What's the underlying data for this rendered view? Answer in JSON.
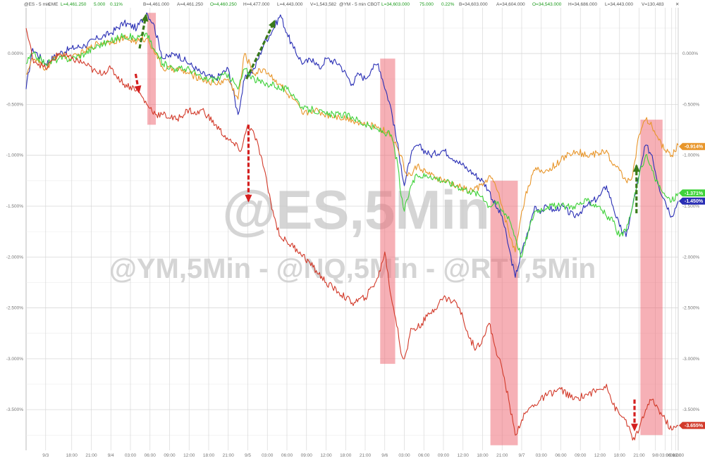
{
  "header": {
    "es_symbol": "@ES - 5 min",
    "es_exchange": "CME",
    "es_last": "L=4,461.250",
    "es_change": "5.000",
    "es_pct": "0.11%",
    "es_bid": "B=4,461.000",
    "es_ask": "A=4,461.250",
    "es_open": "O=4,460.250",
    "es_high": "H=4,477.000",
    "es_low": "L=4,443.000",
    "es_vol": "V=1,543,582",
    "ym_symbol": "@YM - 5 min",
    "ym_exchange": "CBOT",
    "ym_last": "L=34,603.000",
    "ym_change": "75.000",
    "ym_pct": "0.22%",
    "ym_bid": "B=34,603.000",
    "ym_ask": "A=34,604.000",
    "ym_open": "O=34,543.000",
    "ym_high": "H=34,686.000",
    "ym_low": "L=34,443.000",
    "ym_vol": "V=130,483"
  },
  "watermark": {
    "main": "@ES,5Min",
    "sub": "@YM,5Min - @NQ,5Min - @RTY,5Min"
  },
  "colors": {
    "es": "#e8962b",
    "ym": "#d23a2a",
    "nq": "#2a2fb5",
    "rty": "#3fd23a",
    "highlight": "#ee6f7a",
    "arrow_green": "#3a7a1a",
    "arrow_red": "#d42020",
    "grid": "#d8d8d8"
  },
  "chart_data": {
    "type": "line",
    "y_ticks_left": [
      "0.000%",
      "-0.500%",
      "-1.000%",
      "-1.500%",
      "-2.000%",
      "-2.500%",
      "-3.000%",
      "-3.500%"
    ],
    "y_ticks_right": [
      "0.000%",
      "-0.500%",
      "-1.000%",
      "-1.500%",
      "-2.000%",
      "-2.500%",
      "-3.000%",
      "-3.500%"
    ],
    "ylim": [
      -3.9,
      0.45
    ],
    "xlim": [
      0,
      100
    ],
    "x_ticks": [
      {
        "x": 3,
        "label": "9/3"
      },
      {
        "x": 7,
        "label": "18:00"
      },
      {
        "x": 10,
        "label": "21:00"
      },
      {
        "x": 13,
        "label": "9/4"
      },
      {
        "x": 16,
        "label": "03:00"
      },
      {
        "x": 19,
        "label": "06:00"
      },
      {
        "x": 22,
        "label": "09:00"
      },
      {
        "x": 25,
        "label": "12:00"
      },
      {
        "x": 28,
        "label": "18:00"
      },
      {
        "x": 31,
        "label": "21:00"
      },
      {
        "x": 34,
        "label": "9/5"
      },
      {
        "x": 37,
        "label": "03:00"
      },
      {
        "x": 40,
        "label": "06:00"
      },
      {
        "x": 43,
        "label": "09:00"
      },
      {
        "x": 46,
        "label": "12:00"
      },
      {
        "x": 49,
        "label": "18:00"
      },
      {
        "x": 52,
        "label": "21:00"
      },
      {
        "x": 55,
        "label": "9/6"
      },
      {
        "x": 58,
        "label": "03:00"
      },
      {
        "x": 61,
        "label": "06:00"
      },
      {
        "x": 64,
        "label": "09:00"
      },
      {
        "x": 67,
        "label": "12:00"
      },
      {
        "x": 70,
        "label": "18:00"
      },
      {
        "x": 73,
        "label": "21:00"
      },
      {
        "x": 76,
        "label": "9/7"
      },
      {
        "x": 79,
        "label": "03:00"
      },
      {
        "x": 82,
        "label": "06:00"
      },
      {
        "x": 85,
        "label": "09:00"
      },
      {
        "x": 88,
        "label": "12:00"
      },
      {
        "x": 91,
        "label": "18:00"
      },
      {
        "x": 94,
        "label": "21:00"
      },
      {
        "x": 96.5,
        "label": "9/8"
      },
      {
        "x": 98,
        "label": "03:00"
      },
      {
        "x": 99,
        "label": "06:00"
      },
      {
        "x": 99.6,
        "label": "09:00"
      },
      {
        "x": 100,
        "label": "12:00"
      }
    ],
    "series": [
      {
        "key": "nq",
        "x": [
          0,
          1,
          3,
          5,
          7,
          9,
          11,
          13,
          15,
          17,
          18.5,
          19.5,
          21,
          23,
          25,
          27,
          29,
          31,
          32.5,
          33.5,
          35,
          36.5,
          38,
          39,
          40,
          41,
          42.5,
          44,
          45,
          46,
          48,
          50,
          51,
          52,
          53,
          54,
          56,
          57.5,
          58,
          59,
          60,
          62,
          64,
          66,
          68,
          70,
          71,
          72,
          73,
          74,
          75,
          76,
          77,
          78,
          79,
          80,
          81,
          82,
          84,
          86,
          88,
          89,
          90,
          91,
          92,
          93,
          94,
          95,
          96,
          97,
          98,
          99,
          100
        ],
        "y": [
          -0.35,
          0.05,
          -0.1,
          0.0,
          0.05,
          0.08,
          0.15,
          0.2,
          0.3,
          0.25,
          0.4,
          0.3,
          -0.05,
          0.0,
          -0.1,
          -0.2,
          -0.25,
          -0.15,
          -0.6,
          -0.25,
          -0.15,
          0.1,
          0.25,
          0.38,
          0.2,
          0.05,
          -0.1,
          -0.05,
          -0.15,
          -0.05,
          -0.1,
          -0.3,
          -0.2,
          -0.25,
          -0.15,
          -0.1,
          -0.55,
          -1.1,
          -1.3,
          -1.0,
          -0.9,
          -1.0,
          -0.95,
          -1.05,
          -1.15,
          -1.25,
          -1.35,
          -1.5,
          -1.6,
          -1.9,
          -2.2,
          -1.95,
          -1.75,
          -1.5,
          -1.55,
          -1.5,
          -1.55,
          -1.5,
          -1.6,
          -1.5,
          -1.4,
          -1.3,
          -1.5,
          -1.7,
          -1.8,
          -1.5,
          -1.2,
          -0.9,
          -1.0,
          -1.3,
          -1.45,
          -1.6,
          -1.45
        ]
      },
      {
        "key": "es",
        "x": [
          0,
          1,
          3,
          5,
          7,
          9,
          11,
          13,
          15,
          17,
          18.5,
          19.5,
          21,
          23,
          25,
          27,
          29,
          31,
          32.5,
          33.5,
          35,
          36.5,
          38,
          39,
          40,
          41,
          42.5,
          44,
          46,
          48,
          50,
          52,
          54,
          56,
          57.5,
          58,
          59,
          60,
          62,
          64,
          66,
          68,
          70,
          71,
          72,
          73,
          74,
          75,
          76,
          77,
          78,
          80,
          82,
          84,
          86,
          88,
          89,
          90,
          91,
          92,
          93,
          94,
          95,
          96,
          97,
          98,
          99,
          100
        ],
        "y": [
          -0.2,
          -0.05,
          -0.15,
          0.0,
          -0.05,
          0.02,
          0.1,
          0.12,
          0.15,
          0.12,
          0.15,
          0.05,
          -0.15,
          -0.15,
          -0.2,
          -0.25,
          -0.3,
          -0.25,
          -0.45,
          0.0,
          -0.2,
          -0.15,
          -0.25,
          -0.3,
          -0.4,
          -0.45,
          -0.6,
          -0.55,
          -0.6,
          -0.62,
          -0.65,
          -0.7,
          -0.72,
          -0.8,
          -1.0,
          -1.15,
          -1.2,
          -1.1,
          -1.2,
          -1.25,
          -1.3,
          -1.35,
          -1.3,
          -1.2,
          -1.3,
          -1.5,
          -1.75,
          -1.95,
          -1.55,
          -1.3,
          -1.15,
          -1.15,
          -1.05,
          -0.95,
          -1.0,
          -0.98,
          -0.95,
          -1.1,
          -1.15,
          -1.25,
          -1.2,
          -0.8,
          -0.65,
          -0.72,
          -0.85,
          -0.95,
          -1.0,
          -0.9
        ]
      },
      {
        "key": "rty",
        "x": [
          0,
          1,
          3,
          5,
          7,
          9,
          11,
          13,
          15,
          17,
          18.5,
          19.5,
          21,
          23,
          25,
          27,
          29,
          31,
          32.5,
          33.5,
          35,
          36.5,
          38,
          39,
          40,
          41,
          42.5,
          44,
          46,
          48,
          50,
          52,
          54,
          56,
          57,
          57.5,
          58,
          59,
          60,
          62,
          64,
          66,
          68,
          70,
          71,
          72,
          73,
          74,
          75,
          76,
          77,
          78,
          80,
          82,
          84,
          86,
          88,
          89,
          90,
          91,
          92,
          93,
          94,
          95,
          96,
          97,
          98,
          99,
          100
        ],
        "y": [
          -0.1,
          0.0,
          -0.1,
          -0.05,
          -0.05,
          0.0,
          0.08,
          0.12,
          0.18,
          0.15,
          0.2,
          0.05,
          -0.1,
          -0.15,
          -0.15,
          -0.25,
          -0.25,
          -0.2,
          -0.35,
          -0.15,
          -0.25,
          -0.3,
          -0.3,
          -0.35,
          -0.35,
          -0.4,
          -0.55,
          -0.55,
          -0.6,
          -0.6,
          -0.62,
          -0.7,
          -0.75,
          -0.8,
          -1.1,
          -1.4,
          -1.55,
          -1.3,
          -1.2,
          -1.2,
          -1.25,
          -1.3,
          -1.35,
          -1.4,
          -1.5,
          -1.45,
          -1.55,
          -1.6,
          -1.8,
          -2.0,
          -1.75,
          -1.55,
          -1.5,
          -1.5,
          -1.5,
          -1.45,
          -1.5,
          -1.6,
          -1.65,
          -1.8,
          -1.75,
          -1.5,
          -1.2,
          -1.0,
          -1.15,
          -1.3,
          -1.4,
          -1.45,
          -1.37
        ]
      },
      {
        "key": "ym",
        "x": [
          0,
          1,
          3,
          5,
          7,
          9,
          11,
          13,
          15,
          17,
          18.5,
          20,
          21,
          23,
          25,
          26,
          27,
          29,
          31,
          33,
          34,
          35,
          36,
          37,
          38,
          39,
          40,
          42,
          44,
          46,
          48,
          50,
          52,
          54,
          55,
          56,
          57,
          57.5,
          58,
          58.5,
          59,
          60,
          62,
          64,
          65,
          66,
          67,
          68,
          69,
          70,
          71,
          72,
          73,
          74,
          75,
          76,
          77,
          78,
          80,
          82,
          84,
          86,
          88,
          89,
          90,
          91,
          92,
          93,
          94,
          95,
          96,
          97,
          98,
          99,
          100
        ],
        "y": [
          0.25,
          -0.05,
          -0.15,
          0.0,
          -0.05,
          -0.1,
          -0.2,
          -0.15,
          -0.3,
          -0.35,
          -0.5,
          -0.6,
          -0.6,
          -0.65,
          -0.55,
          -0.6,
          -0.55,
          -0.7,
          -0.85,
          -0.95,
          -0.7,
          -0.8,
          -1.0,
          -1.3,
          -1.6,
          -1.8,
          -1.85,
          -1.95,
          -2.1,
          -2.25,
          -2.35,
          -2.45,
          -2.4,
          -2.2,
          -1.95,
          -2.4,
          -2.7,
          -2.95,
          -3.0,
          -2.9,
          -2.7,
          -2.7,
          -2.55,
          -2.4,
          -2.42,
          -2.45,
          -2.6,
          -2.8,
          -2.9,
          -2.8,
          -2.65,
          -2.9,
          -3.1,
          -3.4,
          -3.75,
          -3.6,
          -3.5,
          -3.45,
          -3.35,
          -3.3,
          -3.4,
          -3.35,
          -3.3,
          -3.25,
          -3.45,
          -3.55,
          -3.6,
          -3.8,
          -3.7,
          -3.5,
          -3.4,
          -3.5,
          -3.6,
          -3.7,
          -3.66
        ]
      }
    ],
    "right_tags": [
      {
        "key": "es",
        "label": "-0.914%",
        "y": -0.914
      },
      {
        "key": "rty",
        "label": "-1.371%",
        "y": -1.371
      },
      {
        "key": "nq",
        "label": "-1.450%",
        "y": -1.45
      },
      {
        "key": "ym",
        "label": "-3.655%",
        "y": -3.655
      }
    ],
    "highlights": [
      {
        "x0": 18.6,
        "x1": 19.9,
        "y0": 0.4,
        "y1": -0.7
      },
      {
        "x0": 54.3,
        "x1": 56.6,
        "y0": -0.05,
        "y1": -3.05
      },
      {
        "x0": 71.2,
        "x1": 75.4,
        "y0": -1.25,
        "y1": -3.85
      },
      {
        "x0": 94.2,
        "x1": 97.6,
        "y0": -0.65,
        "y1": -3.75
      }
    ],
    "arrows": [
      {
        "color": "green",
        "x0": 17.4,
        "y0": 0.05,
        "x1": 18.4,
        "y1": 0.38
      },
      {
        "color": "red",
        "x0": 16.8,
        "y0": -0.2,
        "x1": 17.3,
        "y1": -0.38
      },
      {
        "color": "green",
        "x0": 33.8,
        "y0": -0.25,
        "x1": 38.1,
        "y1": 0.32
      },
      {
        "color": "red",
        "x0": 34.1,
        "y0": -0.7,
        "x1": 34.1,
        "y1": -1.45
      },
      {
        "color": "green",
        "x0": 93.6,
        "y0": -1.57,
        "x1": 93.6,
        "y1": -1.1
      },
      {
        "color": "red",
        "x0": 93.3,
        "y0": -3.4,
        "x1": 93.3,
        "y1": -3.7
      }
    ]
  }
}
